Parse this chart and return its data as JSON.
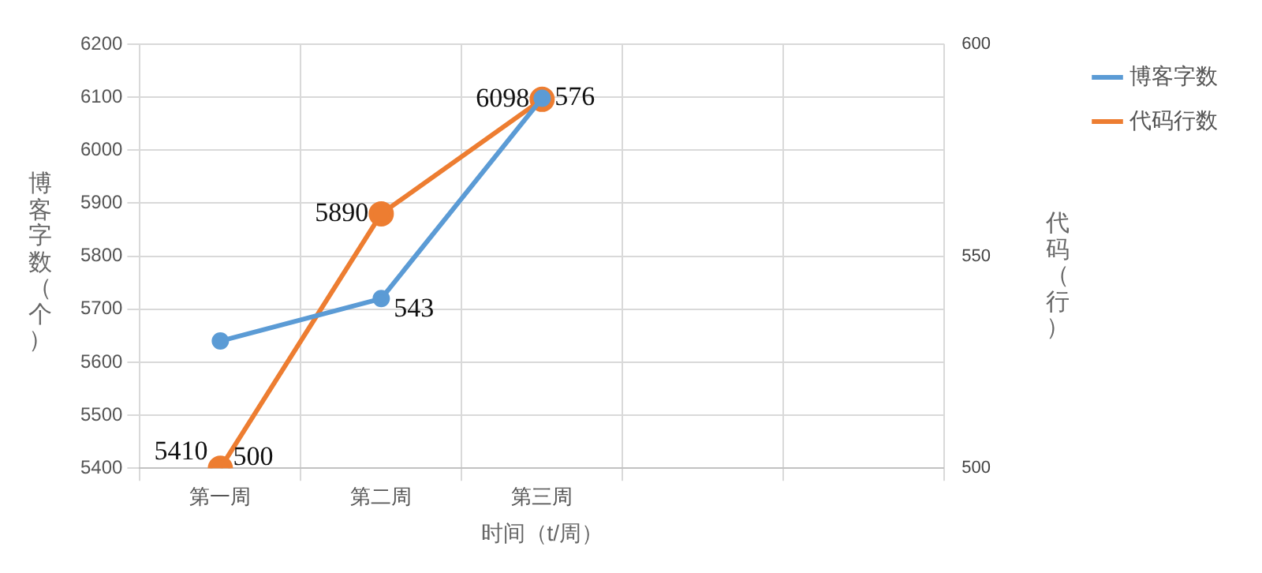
{
  "chart_data": {
    "type": "line",
    "categories": [
      "第一周",
      "第二周",
      "第三周",
      null,
      null
    ],
    "xlabel": "时间（t/周）",
    "ylabel": "博客字数（个）",
    "y2label": "代码（行）",
    "series": [
      {
        "name": "博客字数",
        "color": "#5b9bd5",
        "values": [
          5640,
          5720,
          6098,
          null,
          null
        ]
      },
      {
        "name": "代码行数",
        "color": "#ed7d31",
        "axis": "y2",
        "values": [
          500,
          560,
          587,
          null,
          null
        ]
      }
    ],
    "ylim": [
      5400,
      6200
    ],
    "yticks": [
      5400,
      5500,
      5600,
      5700,
      5800,
      5900,
      6000,
      6100,
      6200
    ],
    "y2lim": [
      500,
      600
    ],
    "y2ticks": [
      500,
      550,
      600
    ],
    "annotations": [
      {
        "text": "5410",
        "x": "第一周",
        "y": 5430
      },
      {
        "text": "500",
        "x": "第一周",
        "y": 5420
      },
      {
        "text": "5890",
        "x": "第二周",
        "y": 5880
      },
      {
        "text": "543",
        "x": "第二周",
        "y": 5700
      },
      {
        "text": "6098",
        "x": "第三周",
        "y": 6095
      },
      {
        "text": "576",
        "x": "第三周",
        "y": 6098
      }
    ],
    "grid": true,
    "legend": "top right",
    "marker": "circle",
    "line_style": "solid"
  }
}
